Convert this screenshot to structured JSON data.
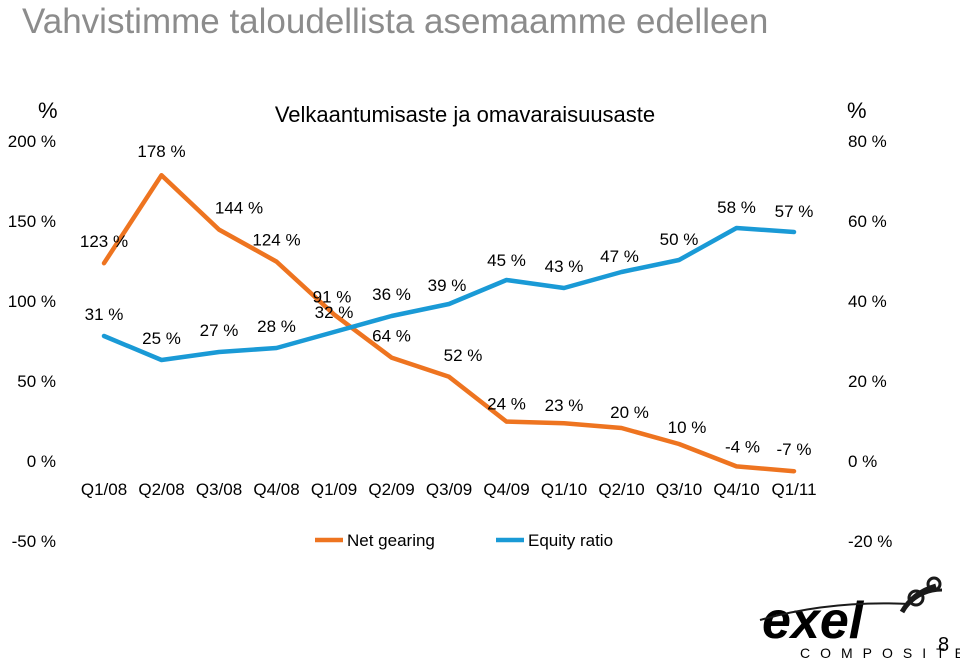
{
  "slide": {
    "title": "Vahvistimme taloudellista asemaamme edelleen",
    "page_number": "8"
  },
  "logo": {
    "word": "exel",
    "sub": "COMPOSITES"
  },
  "chart_data": {
    "type": "line",
    "title": "Velkaantumisaste ja omavaraisuusaste",
    "categories": [
      "Q1/08",
      "Q2/08",
      "Q3/08",
      "Q4/08",
      "Q1/09",
      "Q2/09",
      "Q3/09",
      "Q4/09",
      "Q1/10",
      "Q2/10",
      "Q3/10",
      "Q4/10",
      "Q1/11"
    ],
    "y_left": {
      "unit": "%",
      "min": -50,
      "max": 200,
      "ticks": [
        "200 %",
        "150 %",
        "100 %",
        "50 %",
        "0 %",
        "-50 %"
      ]
    },
    "y_right": {
      "unit": "%",
      "min": -20,
      "max": 80,
      "ticks": [
        "80 %",
        "60 %",
        "40 %",
        "20 %",
        "0 %",
        "-20 %"
      ]
    },
    "legend_position": "bottom",
    "series": [
      {
        "name": "Net gearing",
        "axis": "left",
        "color": "#ee7420",
        "values": [
          123,
          178,
          144,
          124,
          91,
          64,
          52,
          24,
          23,
          20,
          10,
          -4,
          -7
        ],
        "labels": [
          "123 %",
          "178 %",
          "144 %",
          "124 %",
          "91 %",
          "64 %",
          "52 %",
          "24 %",
          "23 %",
          "20 %",
          "10 %",
          "-4 %",
          "-7 %"
        ]
      },
      {
        "name": "Equity ratio",
        "axis": "right",
        "color": "#1a9ad6",
        "values": [
          31,
          25,
          27,
          28,
          32,
          36,
          39,
          45,
          43,
          47,
          50,
          58,
          57
        ],
        "labels": [
          "31 %",
          "25 %",
          "27 %",
          "28 %",
          "32 %",
          "36 %",
          "39 %",
          "45 %",
          "43 %",
          "47 %",
          "50 %",
          "58 %",
          "57 %"
        ]
      }
    ]
  }
}
